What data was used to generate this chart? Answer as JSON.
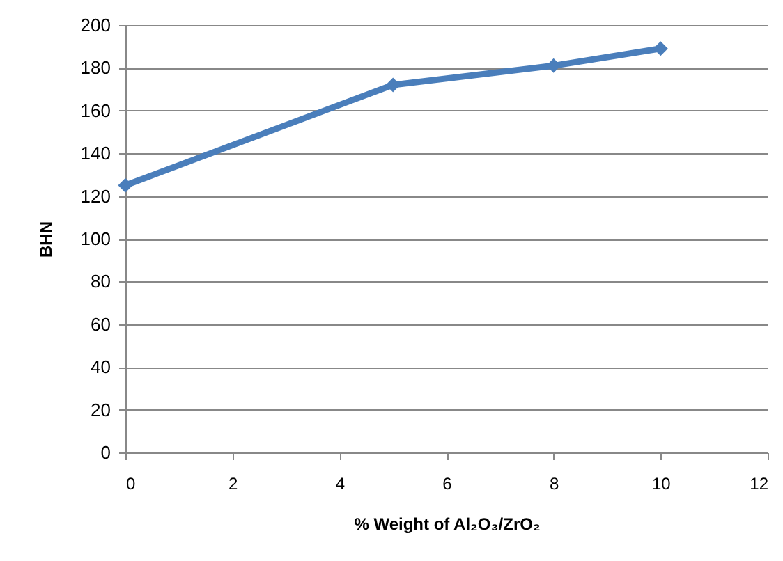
{
  "chart_data": {
    "type": "line",
    "xlabel": "% Weight of Al₂O₃/ZrO₂",
    "ylabel": "BHN",
    "x": [
      0,
      5,
      8,
      10
    ],
    "series": [
      {
        "color": "#4a7ebb",
        "values": [
          125,
          172,
          181,
          189
        ]
      }
    ],
    "xlim": [
      0,
      12
    ],
    "xticks": [
      0,
      2,
      4,
      6,
      8,
      10,
      12
    ],
    "ylim": [
      0,
      200
    ],
    "yticks": [
      0,
      20,
      40,
      60,
      80,
      100,
      120,
      140,
      160,
      180,
      200
    ],
    "grid": "y",
    "marker": "diamond",
    "line_style": "solid"
  }
}
